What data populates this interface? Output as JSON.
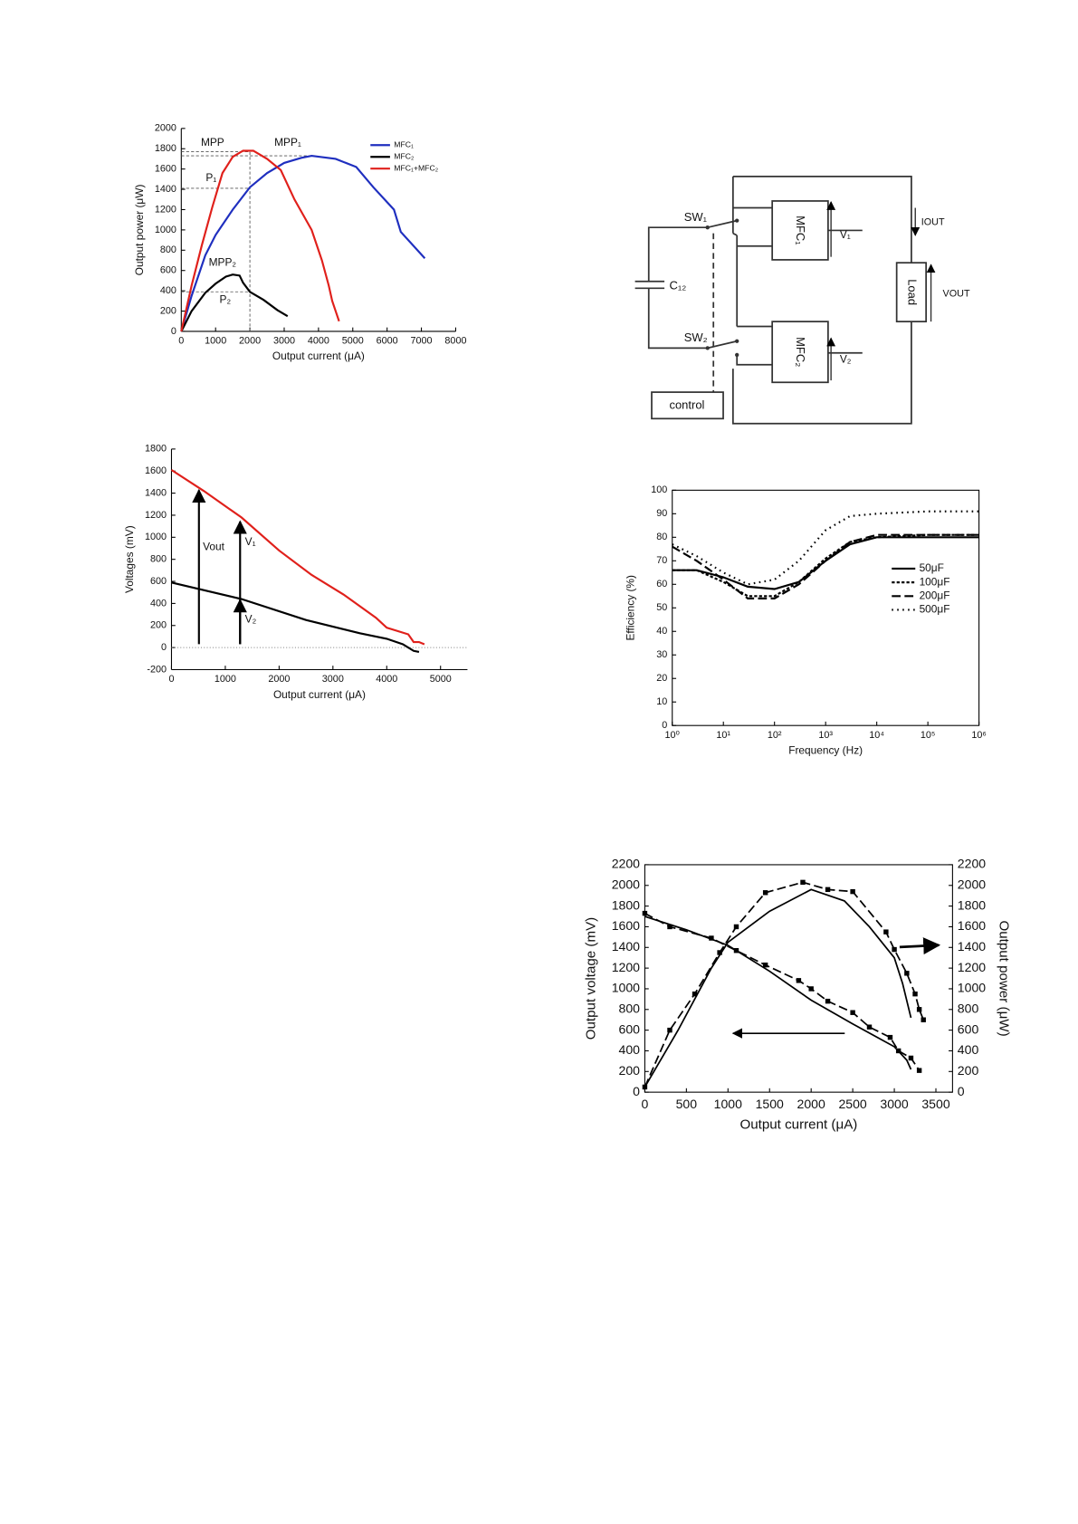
{
  "chart_data": [
    {
      "type": "line",
      "xlabel": "Output current (μA)",
      "ylabel": "Output power (μW)",
      "xlim": [
        0,
        8000
      ],
      "xticks": [
        0,
        1000,
        2000,
        3000,
        4000,
        5000,
        6000,
        7000,
        8000
      ],
      "ylim": [
        0,
        2000
      ],
      "yticks": [
        0,
        200,
        400,
        600,
        800,
        1000,
        1200,
        1400,
        1600,
        1800,
        2000
      ],
      "legend": "upper right",
      "series": [
        {
          "name": "MFC₁",
          "color": "#1f2fbf",
          "x": [
            0,
            300,
            700,
            1000,
            1500,
            2000,
            2500,
            3000,
            3500,
            3800,
            4500,
            5100,
            5600,
            6200,
            6400,
            7100
          ],
          "values": [
            0,
            350,
            750,
            950,
            1200,
            1420,
            1560,
            1660,
            1710,
            1730,
            1700,
            1620,
            1420,
            1200,
            980,
            720
          ]
        },
        {
          "name": "MFC₂",
          "color": "#000000",
          "x": [
            0,
            300,
            700,
            1000,
            1300,
            1500,
            1700,
            1800,
            2000,
            2400,
            2800,
            3100
          ],
          "values": [
            0,
            200,
            380,
            470,
            540,
            560,
            550,
            480,
            390,
            310,
            210,
            150
          ]
        },
        {
          "name": "MFC₁+MFC₂",
          "color": "#e0201b",
          "x": [
            0,
            300,
            600,
            900,
            1200,
            1500,
            1800,
            2100,
            2500,
            2900,
            3300,
            3800,
            4100,
            4300,
            4400,
            4500,
            4600
          ],
          "values": [
            0,
            450,
            850,
            1220,
            1560,
            1720,
            1780,
            1780,
            1700,
            1590,
            1300,
            1000,
            700,
            450,
            300,
            200,
            100
          ]
        }
      ],
      "guides": [
        {
          "x": [
            0,
            2000
          ],
          "y": [
            1770,
            1770
          ]
        },
        {
          "x": [
            0,
            3800
          ],
          "y": [
            1730,
            1730
          ]
        },
        {
          "x": [
            0,
            2000
          ],
          "y": [
            1410,
            1410
          ]
        },
        {
          "x": [
            0,
            2000
          ],
          "y": [
            390,
            390
          ]
        },
        {
          "x": [
            2000,
            2000
          ],
          "y": [
            0,
            1780
          ]
        }
      ],
      "annotations": [
        {
          "text": "MPP"
        },
        {
          "text": "MPP₁"
        },
        {
          "text": "P₁"
        },
        {
          "text": "MPP₂"
        },
        {
          "text": "P₂"
        }
      ]
    },
    {
      "type": "line",
      "xlabel": "Output current (μA)",
      "ylabel": "Voltages (mV)",
      "xlim": [
        0,
        5500
      ],
      "xticks": [
        0,
        1000,
        2000,
        3000,
        4000,
        5000
      ],
      "ylim": [
        -200,
        1800
      ],
      "yticks": [
        -200,
        0,
        200,
        400,
        600,
        800,
        1000,
        1200,
        1400,
        1600,
        1800
      ],
      "hlines": [
        0
      ],
      "series": [
        {
          "color": "#e0201b",
          "x": [
            0,
            600,
            1300,
            2000,
            2600,
            3200,
            3800,
            4000,
            4400,
            4500,
            4600,
            4700
          ],
          "values": [
            1610,
            1420,
            1180,
            880,
            660,
            480,
            270,
            180,
            120,
            50,
            50,
            30
          ]
        },
        {
          "color": "#000000",
          "x": [
            0,
            1300,
            2500,
            3500,
            4000,
            4300,
            4500,
            4600
          ],
          "values": [
            590,
            440,
            250,
            130,
            80,
            30,
            -30,
            -40
          ]
        }
      ],
      "annotations": [
        {
          "text": "Vout"
        },
        {
          "text": "V₁"
        },
        {
          "text": "V₂"
        }
      ]
    },
    {
      "type": "line",
      "xlabel": "Frequency (Hz)",
      "ylabel": "Efficiency (%)",
      "xscale": "log",
      "xlim": [
        1,
        1000000
      ],
      "xticks": [
        {
          "value": 1,
          "label": "10⁰"
        },
        {
          "value": 10,
          "label": "10¹"
        },
        {
          "value": 100,
          "label": "10²"
        },
        {
          "value": 1000,
          "label": "10³"
        },
        {
          "value": 10000,
          "label": "10⁴"
        },
        {
          "value": 100000,
          "label": "10⁵"
        },
        {
          "value": 1000000,
          "label": "10⁶"
        }
      ],
      "ylim": [
        0,
        100
      ],
      "yticks": [
        0,
        10,
        20,
        30,
        40,
        50,
        60,
        70,
        80,
        90,
        100
      ],
      "legend": "right",
      "series": [
        {
          "name": "50μF",
          "color": "#000000",
          "style": "solid",
          "x": [
            1,
            3,
            10,
            30,
            100,
            300,
            1000,
            3000,
            10000,
            100000,
            1000000
          ],
          "values": [
            66,
            66,
            63,
            59,
            58,
            61,
            70,
            77,
            80,
            80,
            80
          ]
        },
        {
          "name": "100μF",
          "color": "#000000",
          "style": "short-dash",
          "x": [
            1,
            3,
            10,
            30,
            100,
            300,
            1000,
            3000,
            10000,
            100000,
            1000000
          ],
          "values": [
            66,
            66,
            61,
            55,
            55,
            61,
            71,
            78,
            80,
            81,
            81
          ]
        },
        {
          "name": "200μF",
          "color": "#000000",
          "style": "long-dash",
          "x": [
            1,
            3,
            10,
            30,
            100,
            300,
            1000,
            3000,
            10000,
            100000,
            1000000
          ],
          "values": [
            76,
            70,
            62,
            54,
            54,
            60,
            70,
            78,
            81,
            81,
            81
          ]
        },
        {
          "name": "500μF",
          "color": "#000000",
          "style": "dotted",
          "x": [
            1,
            3,
            10,
            30,
            100,
            300,
            1000,
            3000,
            10000,
            100000,
            1000000
          ],
          "values": [
            77,
            72,
            65,
            60,
            62,
            70,
            83,
            89,
            90,
            91,
            91
          ]
        }
      ]
    },
    {
      "type": "line",
      "xlabel": "Output current (μA)",
      "ylabel": "Output voltage (mV)",
      "y2label": "Output power (μW)",
      "xlim": [
        0,
        3700
      ],
      "xticks": [
        0,
        500,
        1000,
        1500,
        2000,
        2500,
        3000,
        3500
      ],
      "ylim": [
        0,
        2200
      ],
      "yticks": [
        0,
        200,
        400,
        600,
        800,
        1000,
        1200,
        1400,
        1600,
        1800,
        2000,
        2200
      ],
      "y2lim": [
        0,
        2200
      ],
      "y2ticks": [
        0,
        200,
        400,
        600,
        800,
        1000,
        1200,
        1400,
        1600,
        1800,
        2000,
        2200
      ],
      "series": [
        {
          "color": "#000000",
          "style": "solid",
          "x": [
            0,
            500,
            1000,
            1500,
            2000,
            2500,
            3000,
            3150,
            3200
          ],
          "values": [
            1700,
            1570,
            1420,
            1170,
            890,
            660,
            440,
            310,
            220
          ]
        },
        {
          "color": "#000000",
          "style": "long-dash",
          "marker": "square",
          "x": [
            0,
            300,
            800,
            1100,
            1450,
            1850,
            2000,
            2200,
            2500,
            2700,
            2950,
            3050,
            3200,
            3300
          ],
          "values": [
            1730,
            1600,
            1490,
            1370,
            1230,
            1080,
            1000,
            880,
            770,
            630,
            530,
            400,
            330,
            210
          ]
        },
        {
          "color": "#000000",
          "style": "solid",
          "axis": "y2",
          "x": [
            0,
            400,
            800,
            1000,
            1500,
            2000,
            2400,
            2700,
            3000,
            3100,
            3200
          ],
          "values": [
            50,
            600,
            1200,
            1450,
            1750,
            1960,
            1850,
            1600,
            1300,
            1050,
            720
          ]
        },
        {
          "color": "#000000",
          "style": "long-dash",
          "marker": "square",
          "axis": "y2",
          "x": [
            0,
            300,
            600,
            900,
            1100,
            1450,
            1900,
            2200,
            2500,
            2900,
            3000,
            3150,
            3250,
            3300,
            3350
          ],
          "values": [
            50,
            600,
            950,
            1350,
            1600,
            1930,
            2030,
            1960,
            1940,
            1550,
            1380,
            1150,
            950,
            800,
            700
          ]
        }
      ]
    }
  ],
  "diagram": {
    "sw1": "SW₁",
    "sw2": "SW₂",
    "capacitor": "C₁₂",
    "mfc1": "MFC₁",
    "mfc2": "MFC₂",
    "v1": "V₁",
    "v2": "V₂",
    "iout": "IOUT",
    "load": "Load",
    "vout": "VOUT",
    "control": "control"
  }
}
